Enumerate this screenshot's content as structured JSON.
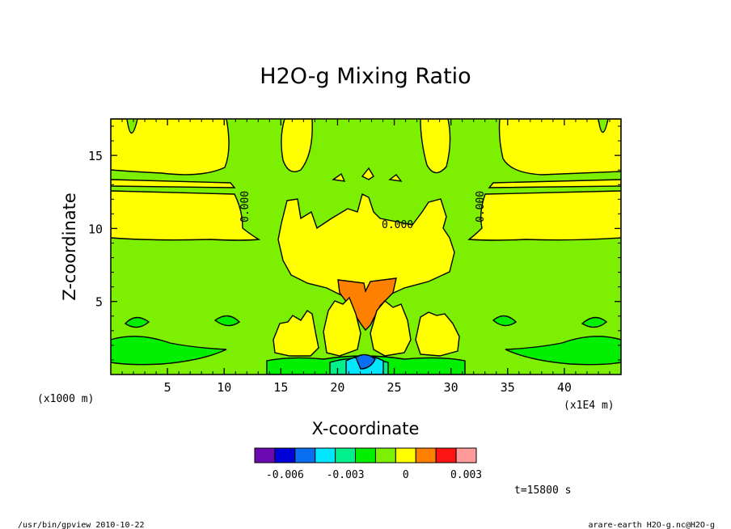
{
  "chart_data": {
    "type": "heatmap",
    "title": "H2O-g Mixing Ratio",
    "xlabel": "X-coordinate",
    "ylabel": "Z-coordinate",
    "x_unit": "(x1E4 m)",
    "y_unit": "(x1000 m)",
    "xlim": [
      0,
      45
    ],
    "ylim": [
      0,
      17.5
    ],
    "xticks": [
      5,
      10,
      15,
      20,
      25,
      30,
      35,
      40
    ],
    "yticks": [
      5,
      10,
      15
    ],
    "contour_labels": [
      "0.000",
      "0.000",
      "0.000"
    ],
    "colorbar": {
      "colors": [
        "#6a0ab0",
        "#0000d8",
        "#0a6ef0",
        "#00e6ff",
        "#00f08c",
        "#00f000",
        "#7cf000",
        "#ffff00",
        "#ff8000",
        "#ff1414",
        "#ff9a9a"
      ],
      "tick_labels": [
        "-0.006",
        "-0.003",
        "0",
        "0.003"
      ],
      "tick_values": [
        -0.006,
        -0.003,
        0,
        0.003
      ],
      "range": [
        -0.0075,
        0.0035
      ]
    },
    "time_label": "t=15800 s",
    "footer_left": "/usr/bin/gpview   2010-10-22",
    "footer_right": "arare-earth_H2O-g.nc@H2O-g"
  }
}
